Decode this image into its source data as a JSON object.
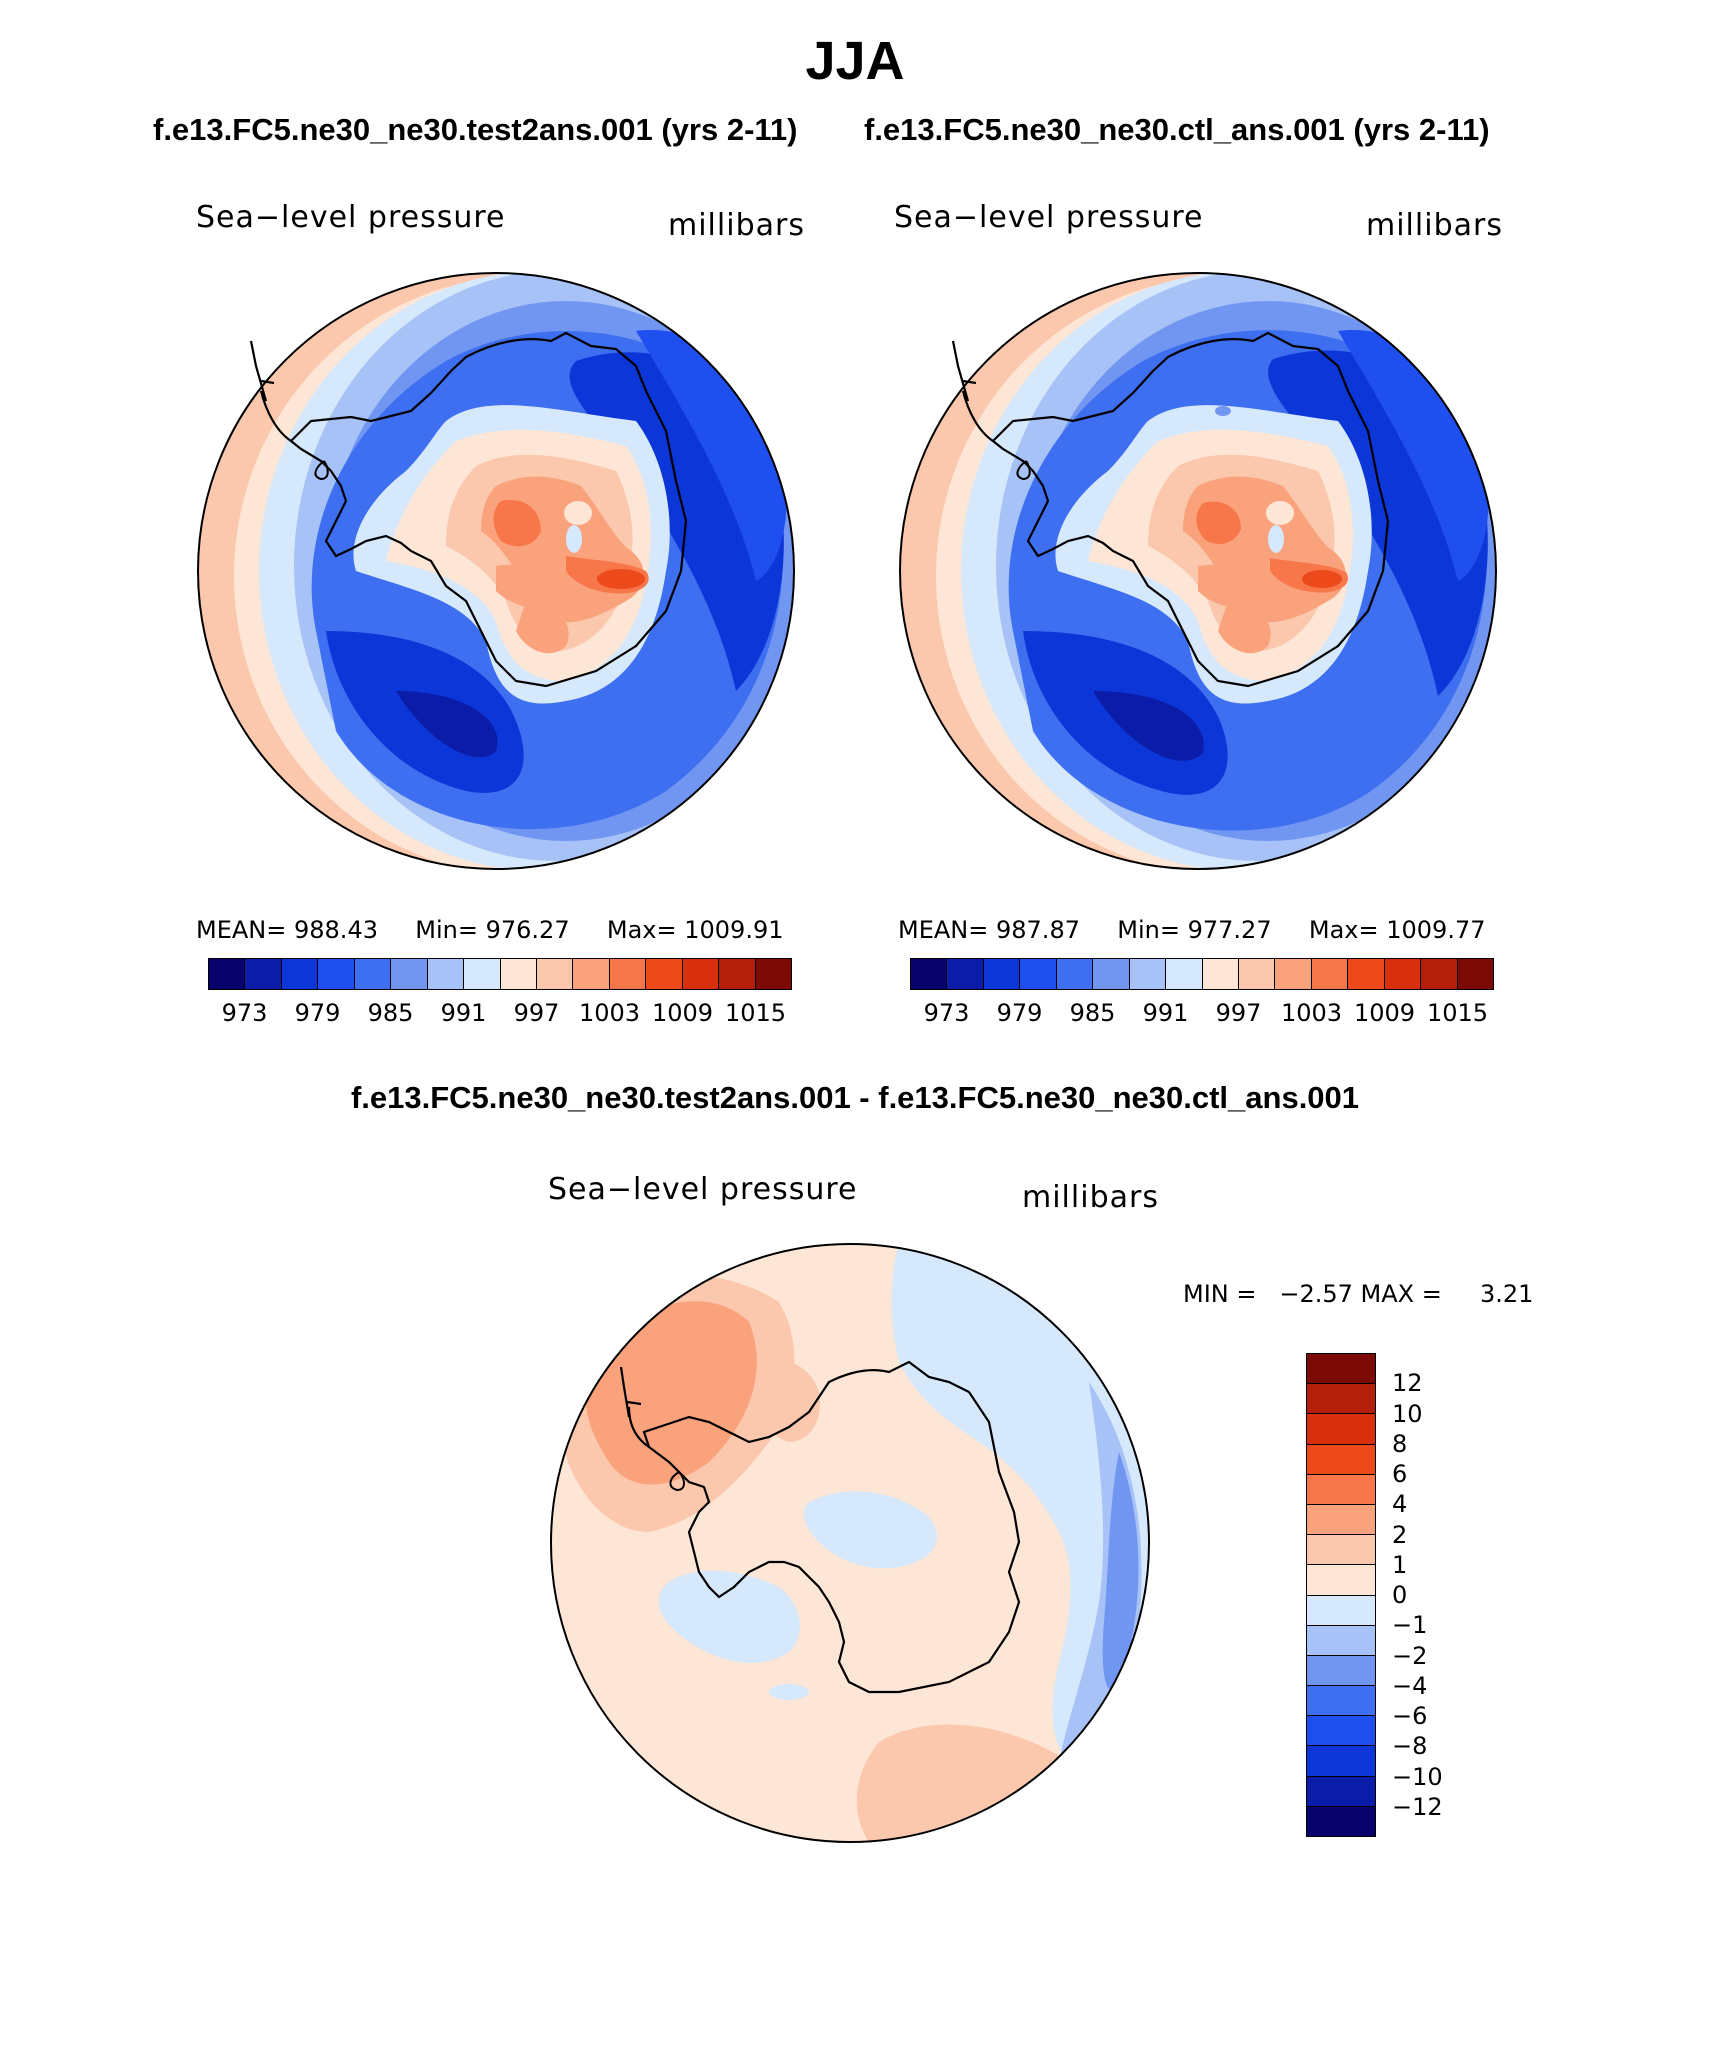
{
  "season": "JJA",
  "case_header_left": "f.e13.FC5.ne30_ne30.test2ans.001 (yrs 2-11)",
  "case_header_right": "f.e13.FC5.ne30_ne30.ctl_ans.001 (yrs 2-11)",
  "diff_title": "f.e13.FC5.ne30_ne30.test2ans.001 - f.e13.FC5.ne30_ne30.ctl_ans.001",
  "panels": [
    {
      "variable": "Sea−level pressure",
      "units": "millibars",
      "mean_label": "MEAN=",
      "mean": "988.43",
      "min_label": "Min=",
      "min": "976.27",
      "max_label": "Max=",
      "max": "1009.91"
    },
    {
      "variable": "Sea−level pressure",
      "units": "millibars",
      "mean_label": "MEAN=",
      "mean": "987.87",
      "min_label": "Min=",
      "min": "977.27",
      "max_label": "Max=",
      "max": "1009.77"
    }
  ],
  "diff_panel": {
    "variable": "Sea−level pressure",
    "units": "millibars",
    "minmax_text": "MIN =   −2.57 MAX =     3.21"
  },
  "colorbar_top": {
    "ticks": [
      "973",
      "979",
      "985",
      "991",
      "997",
      "1003",
      "1009",
      "1015"
    ],
    "colors": [
      "#08006b",
      "#0a1ca8",
      "#0d36d8",
      "#1f4fee",
      "#3d6ff0",
      "#7196f2",
      "#a6c2f6",
      "#d6e8fb",
      "#fde6d6",
      "#fbc8ad",
      "#f9a27c",
      "#f7764a",
      "#ed4a1c",
      "#d8300d",
      "#b31f08",
      "#7c0b06"
    ]
  },
  "colorbar_diff": {
    "ticks": [
      "12",
      "10",
      "8",
      "6",
      "4",
      "2",
      "1",
      "0",
      "−1",
      "−2",
      "−4",
      "−6",
      "−8",
      "−10",
      "−12"
    ],
    "colors": [
      "#7c0b06",
      "#b31f08",
      "#d8300d",
      "#ed4a1c",
      "#f7764a",
      "#f9a27c",
      "#fbc8ad",
      "#fde6d6",
      "#d6e8fb",
      "#a6c2f6",
      "#7196f2",
      "#3d6ff0",
      "#1f4fee",
      "#0d36d8",
      "#0a1ca8",
      "#08006b"
    ]
  },
  "colors": {
    "land_outline": "#000000",
    "deep_low": "#0d36d8",
    "low": "#3d6ff0",
    "mid_low": "#7196f2",
    "light_low": "#a6c2f6",
    "pale_low": "#d6e8fb",
    "pale_high": "#fde6d6",
    "light_high": "#fbc8ad",
    "mid_high": "#f9a27c",
    "high": "#f7764a",
    "peak": "#ed4a1c"
  }
}
